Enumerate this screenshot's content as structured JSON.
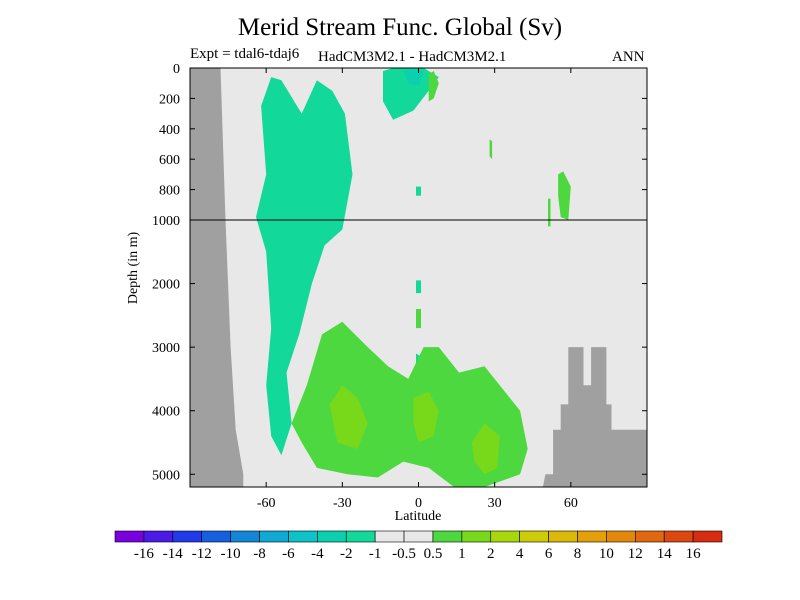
{
  "chart_data": {
    "type": "heatmap",
    "title": "Merid Stream Func. Global (Sv)",
    "experiment": "Expt = tdal6-tdaj6",
    "models": "HadCM3M2.1 - HadCM3M2.1",
    "season": "ANN",
    "xlabel": "Latitude",
    "ylabel": "Depth (in m)",
    "xlim": [
      -90,
      90
    ],
    "x_ticks": [
      -60,
      -30,
      0,
      30,
      60
    ],
    "depth_ticks_upper": [
      0,
      200,
      400,
      600,
      800,
      1000
    ],
    "depth_ticks_lower": [
      2000,
      3000,
      4000,
      5000
    ],
    "upper_panel_range": [
      0,
      1000
    ],
    "lower_panel_range": [
      1000,
      5200
    ],
    "colorbar": {
      "labels": [
        "-16",
        "-14",
        "-12",
        "-10",
        "-8",
        "-6",
        "-4",
        "-2",
        "-1",
        "-0.5",
        "0.5",
        "1",
        "2",
        "4",
        "6",
        "8",
        "10",
        "12",
        "14",
        "16"
      ],
      "colors": [
        "#7a00e0",
        "#4b1ae6",
        "#1f3ae8",
        "#1660e0",
        "#1486d8",
        "#10a8d4",
        "#0dc2c8",
        "#0ccfb0",
        "#12d89a",
        "#e8e8e8",
        "#e8e8e8",
        "#4ed840",
        "#78d81a",
        "#a8d80c",
        "#cccc08",
        "#dcb808",
        "#e4a00a",
        "#e4880c",
        "#e0680e",
        "#dc4810",
        "#d82c10"
      ]
    },
    "bathymetry_color": "#a0a0a0",
    "background_color": "#e8e8e8",
    "features": [
      {
        "label": "1",
        "color": "#4ed840"
      },
      {
        "label": "2",
        "color": "#78d81a"
      },
      {
        "label": "-1",
        "color": "#12d89a"
      },
      {
        "label": "-2",
        "color": "#0ccfb0"
      }
    ]
  }
}
